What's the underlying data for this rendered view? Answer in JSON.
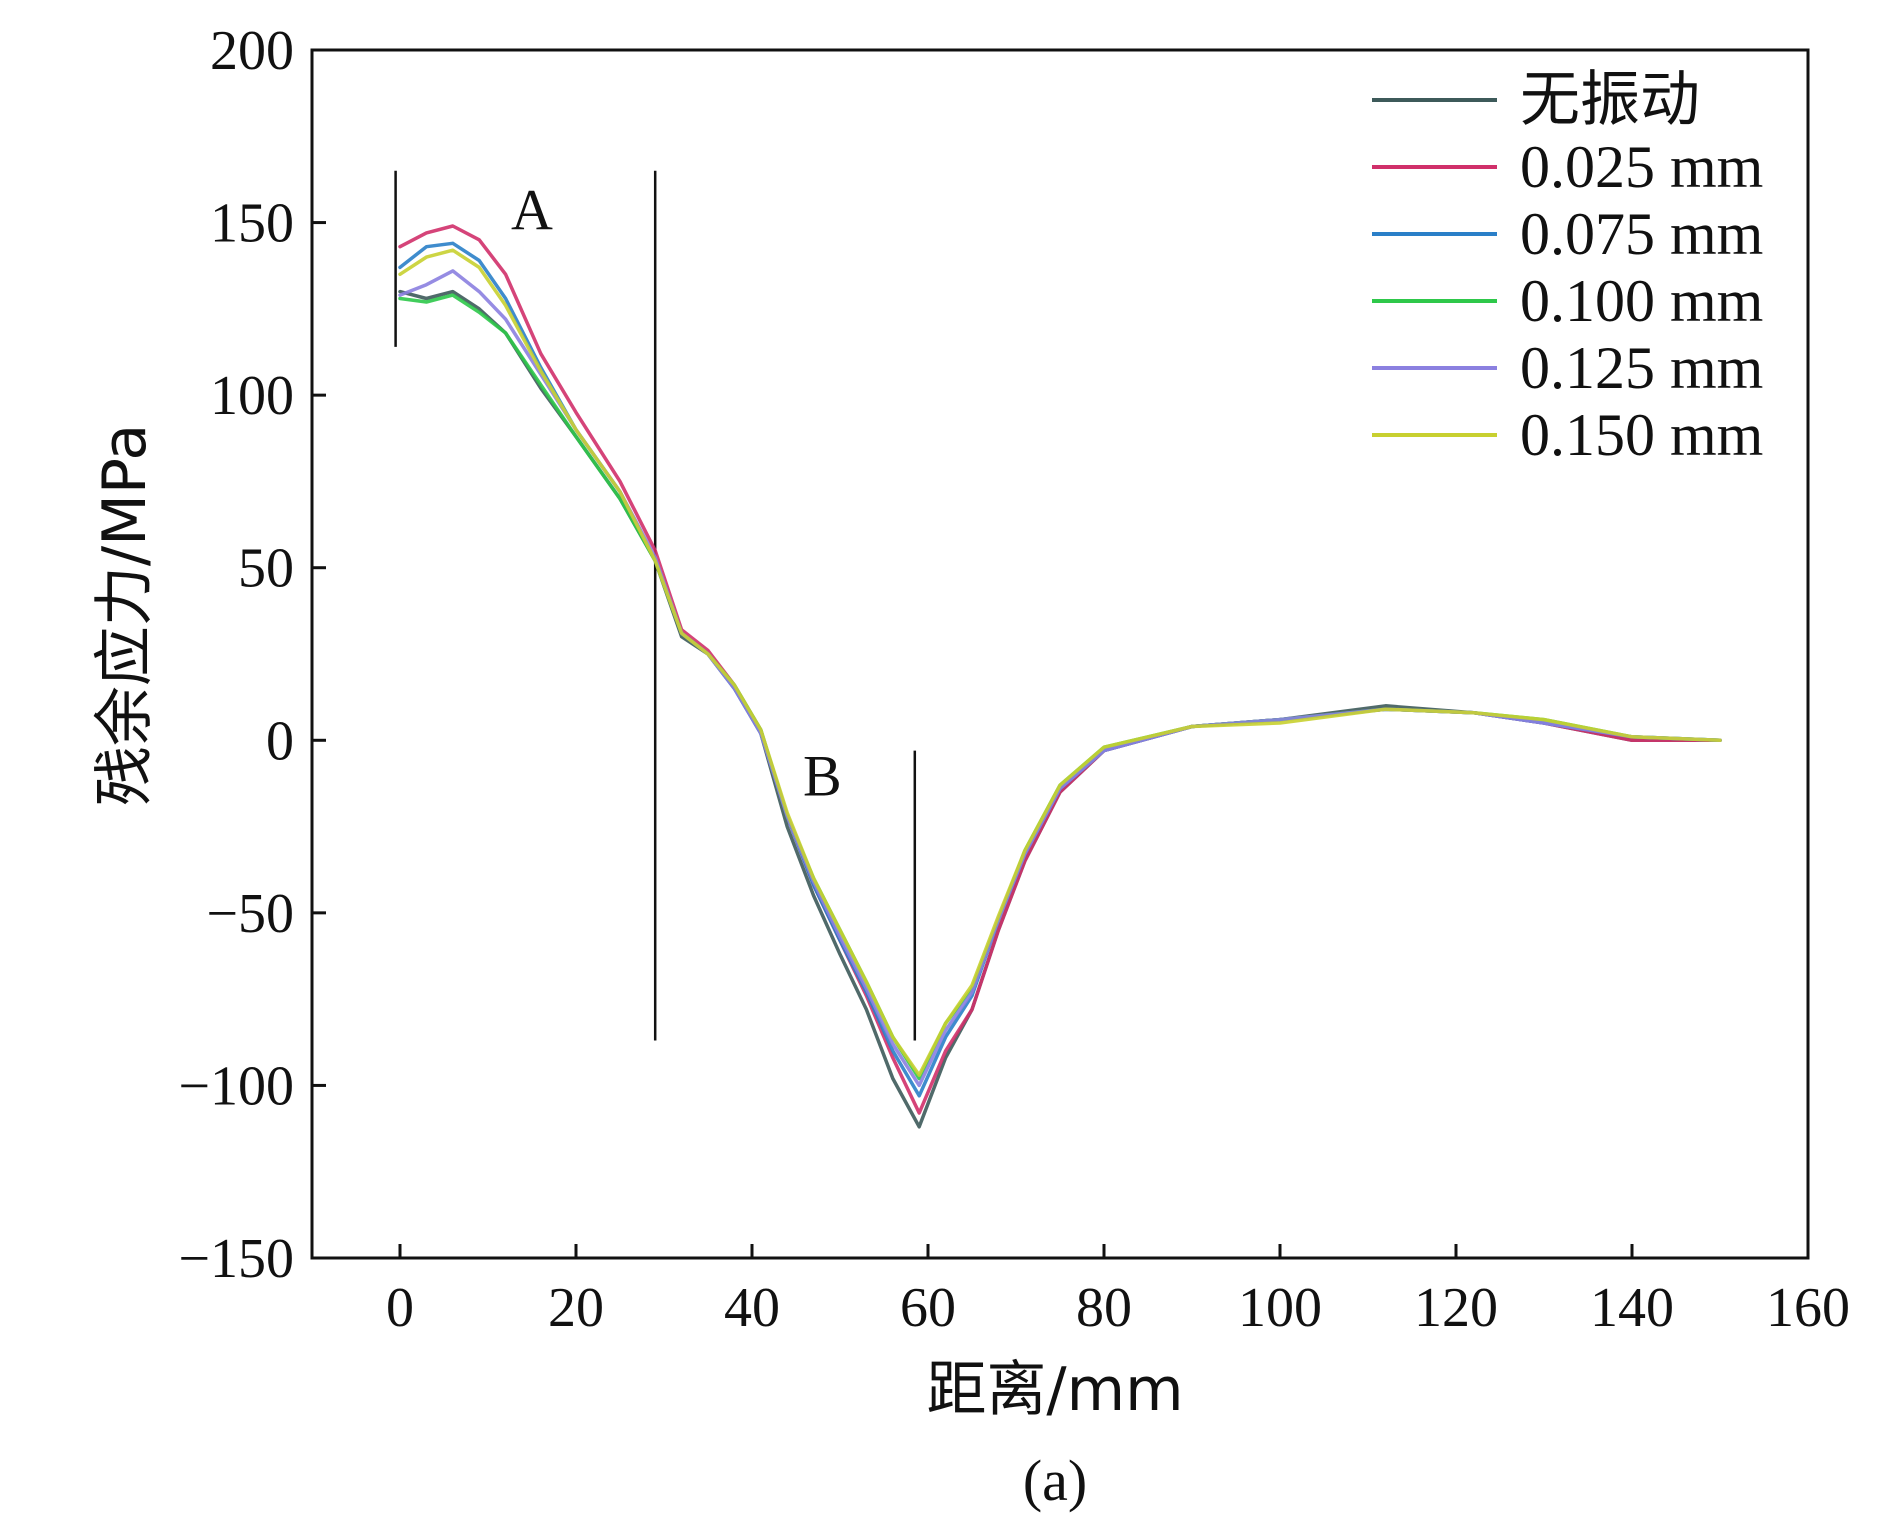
{
  "chart_data": {
    "type": "line",
    "title": "",
    "xlabel": "距离/mm",
    "ylabel": "残余应力/MPa",
    "xlim": [
      -10,
      160
    ],
    "ylim": [
      -150,
      200
    ],
    "xticks": [
      0,
      20,
      40,
      60,
      80,
      100,
      120,
      140,
      160
    ],
    "yticks": [
      -150,
      -100,
      -50,
      0,
      50,
      100,
      150,
      200
    ],
    "grid": false,
    "legend_position": "top-right",
    "panel_label": "(a)",
    "annotations": [
      {
        "text": "A",
        "x": 15,
        "y": 148
      },
      {
        "text": "B",
        "x": 48,
        "y": -16
      }
    ],
    "vertical_markers": [
      {
        "x": -0.5,
        "y_from": 114,
        "y_to": 165
      },
      {
        "x": 29,
        "y_from": -87,
        "y_to": 165
      },
      {
        "x": 58.5,
        "y_from": -87,
        "y_to": -3
      }
    ],
    "series": [
      {
        "name": "无振动",
        "color": "#3d5a5a",
        "x": [
          0,
          3,
          6,
          9,
          12,
          16,
          20,
          25,
          29,
          32,
          35,
          38,
          41,
          44,
          47,
          50,
          53,
          56,
          59,
          62,
          65,
          68,
          71,
          75,
          80,
          90,
          100,
          112,
          122,
          130,
          140,
          150
        ],
        "y": [
          130,
          128,
          130,
          125,
          118,
          102,
          88,
          70,
          52,
          30,
          25,
          15,
          2,
          -25,
          -45,
          -62,
          -78,
          -98,
          -112,
          -92,
          -78,
          -55,
          -35,
          -15,
          -3,
          4,
          6,
          10,
          8,
          5,
          0,
          0
        ]
      },
      {
        "name": "0.025 mm",
        "color": "#d0306a",
        "x": [
          0,
          3,
          6,
          9,
          12,
          16,
          20,
          25,
          29,
          32,
          35,
          38,
          41,
          44,
          47,
          50,
          53,
          56,
          59,
          62,
          65,
          68,
          71,
          75,
          80,
          90,
          100,
          112,
          122,
          130,
          140,
          150
        ],
        "y": [
          143,
          147,
          149,
          145,
          135,
          112,
          95,
          75,
          55,
          32,
          26,
          16,
          3,
          -22,
          -42,
          -58,
          -74,
          -92,
          -108,
          -90,
          -78,
          -55,
          -35,
          -15,
          -3,
          4,
          6,
          9,
          8,
          5,
          0,
          0
        ]
      },
      {
        "name": "0.075 mm",
        "color": "#2a7fc8",
        "x": [
          0,
          3,
          6,
          9,
          12,
          16,
          20,
          25,
          29,
          32,
          35,
          38,
          41,
          44,
          47,
          50,
          53,
          56,
          59,
          62,
          65,
          68,
          71,
          75,
          80,
          90,
          100,
          112,
          122,
          130,
          140,
          150
        ],
        "y": [
          137,
          143,
          144,
          139,
          128,
          108,
          90,
          72,
          52,
          31,
          25,
          15,
          2,
          -22,
          -42,
          -58,
          -73,
          -90,
          -103,
          -86,
          -74,
          -52,
          -33,
          -14,
          -3,
          4,
          6,
          9,
          8,
          5,
          1,
          0
        ]
      },
      {
        "name": "0.100 mm",
        "color": "#2ec84a",
        "x": [
          0,
          3,
          6,
          9,
          12,
          16,
          20,
          25,
          29,
          32,
          35,
          38,
          41,
          44,
          47,
          50,
          53,
          56,
          59,
          62,
          65,
          68,
          71,
          75,
          80,
          90,
          100,
          112,
          122,
          130,
          140,
          150
        ],
        "y": [
          128,
          127,
          129,
          124,
          118,
          103,
          88,
          70,
          52,
          31,
          25,
          16,
          3,
          -22,
          -40,
          -55,
          -70,
          -86,
          -98,
          -82,
          -72,
          -52,
          -32,
          -13,
          -2,
          4,
          6,
          9,
          8,
          6,
          1,
          0
        ]
      },
      {
        "name": "0.125 mm",
        "color": "#8b80e0",
        "x": [
          0,
          3,
          6,
          9,
          12,
          16,
          20,
          25,
          29,
          32,
          35,
          38,
          41,
          44,
          47,
          50,
          53,
          56,
          59,
          62,
          65,
          68,
          71,
          75,
          80,
          90,
          100,
          112,
          122,
          130,
          140,
          150
        ],
        "y": [
          129,
          132,
          136,
          130,
          122,
          106,
          90,
          72,
          53,
          31,
          25,
          15,
          2,
          -22,
          -41,
          -57,
          -72,
          -88,
          -100,
          -84,
          -73,
          -52,
          -33,
          -14,
          -3,
          4,
          6,
          9,
          8,
          5,
          1,
          0
        ]
      },
      {
        "name": "0.150 mm",
        "color": "#c8d030",
        "x": [
          0,
          3,
          6,
          9,
          12,
          16,
          20,
          25,
          29,
          32,
          35,
          38,
          41,
          44,
          47,
          50,
          53,
          56,
          59,
          62,
          65,
          68,
          71,
          75,
          80,
          90,
          100,
          112,
          122,
          130,
          140,
          150
        ],
        "y": [
          135,
          140,
          142,
          137,
          126,
          107,
          90,
          72,
          52,
          31,
          25,
          16,
          3,
          -21,
          -40,
          -55,
          -70,
          -86,
          -97,
          -82,
          -71,
          -51,
          -32,
          -13,
          -2,
          4,
          5,
          9,
          8,
          6,
          1,
          0
        ]
      }
    ]
  }
}
